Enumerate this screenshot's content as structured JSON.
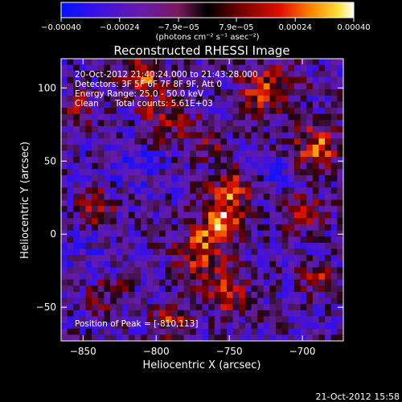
{
  "chart_data": {
    "type": "heatmap",
    "title": "Reconstructed RHESSI Image",
    "xlabel": "Heliocentric X (arcsec)",
    "ylabel": "Heliocentric Y (arcsec)",
    "xlim": [
      -865,
      -672
    ],
    "ylim": [
      -73,
      120
    ],
    "x_ticks": [
      -850,
      -800,
      -750,
      -700
    ],
    "x_tick_labels": [
      "−850",
      "−800",
      "−750",
      "−700"
    ],
    "y_ticks": [
      -50,
      0,
      50,
      100
    ],
    "y_tick_labels": [
      "−50",
      "0",
      "50",
      "100"
    ],
    "colorbar": {
      "range": [
        -0.0004,
        0.0004
      ],
      "ticks": [
        -0.0004,
        -0.00024,
        -7.9e-05,
        7.9e-05,
        0.00024,
        0.0004
      ],
      "tick_labels": [
        "−0.00040",
        "−0.00024",
        "−7.9e−05",
        "7.9e−05",
        "0.00024",
        "0.00040"
      ],
      "units_label": "(photons cm⁻² s⁻¹ asec⁻²)"
    },
    "annotations": {
      "time_range": "20-Oct-2012 21:40:24.000 to 21:43:28.000",
      "detectors": "Detectors: 3F 5F 6F 7F 8F 9F, Att 0",
      "energy_range": "Energy Range: 25.0 - 50.0 keV",
      "clean": "Clean      Total counts: 5.61E+03",
      "peak": "Position of Peak = [-810,113]"
    },
    "image_sources": [
      {
        "x": -756,
        "y": 8,
        "amp": 1.0,
        "sigma": 9
      },
      {
        "x": -748,
        "y": 30,
        "amp": 0.75,
        "sigma": 10
      },
      {
        "x": -770,
        "y": -12,
        "amp": 0.7,
        "sigma": 11
      },
      {
        "x": -752,
        "y": -40,
        "amp": 0.6,
        "sigma": 10
      },
      {
        "x": -790,
        "y": -58,
        "amp": 0.55,
        "sigma": 9
      },
      {
        "x": -810,
        "y": 108,
        "amp": 0.9,
        "sigma": 8
      },
      {
        "x": -795,
        "y": 80,
        "amp": 0.5,
        "sigma": 12
      },
      {
        "x": -690,
        "y": 60,
        "amp": 0.8,
        "sigma": 10
      },
      {
        "x": -700,
        "y": 15,
        "amp": 0.6,
        "sigma": 9
      },
      {
        "x": -690,
        "y": -30,
        "amp": 0.55,
        "sigma": 8
      },
      {
        "x": -730,
        "y": 95,
        "amp": 0.55,
        "sigma": 10
      },
      {
        "x": -715,
        "y": 105,
        "amp": 0.45,
        "sigma": 9
      },
      {
        "x": -840,
        "y": 20,
        "amp": 0.45,
        "sigma": 10
      },
      {
        "x": -852,
        "y": 85,
        "amp": 0.4,
        "sigma": 9
      },
      {
        "x": -835,
        "y": -40,
        "amp": 0.35,
        "sigma": 10
      },
      {
        "x": -765,
        "y": 65,
        "amp": 0.4,
        "sigma": 9
      },
      {
        "x": -815,
        "y": 45,
        "amp": -0.25,
        "sigma": 14
      },
      {
        "x": -845,
        "y": -20,
        "amp": -0.2,
        "sigma": 12
      },
      {
        "x": -720,
        "y": 40,
        "amp": -0.2,
        "sigma": 9
      }
    ]
  },
  "footer": {
    "timestamp": "21-Oct-2012 15:58"
  }
}
